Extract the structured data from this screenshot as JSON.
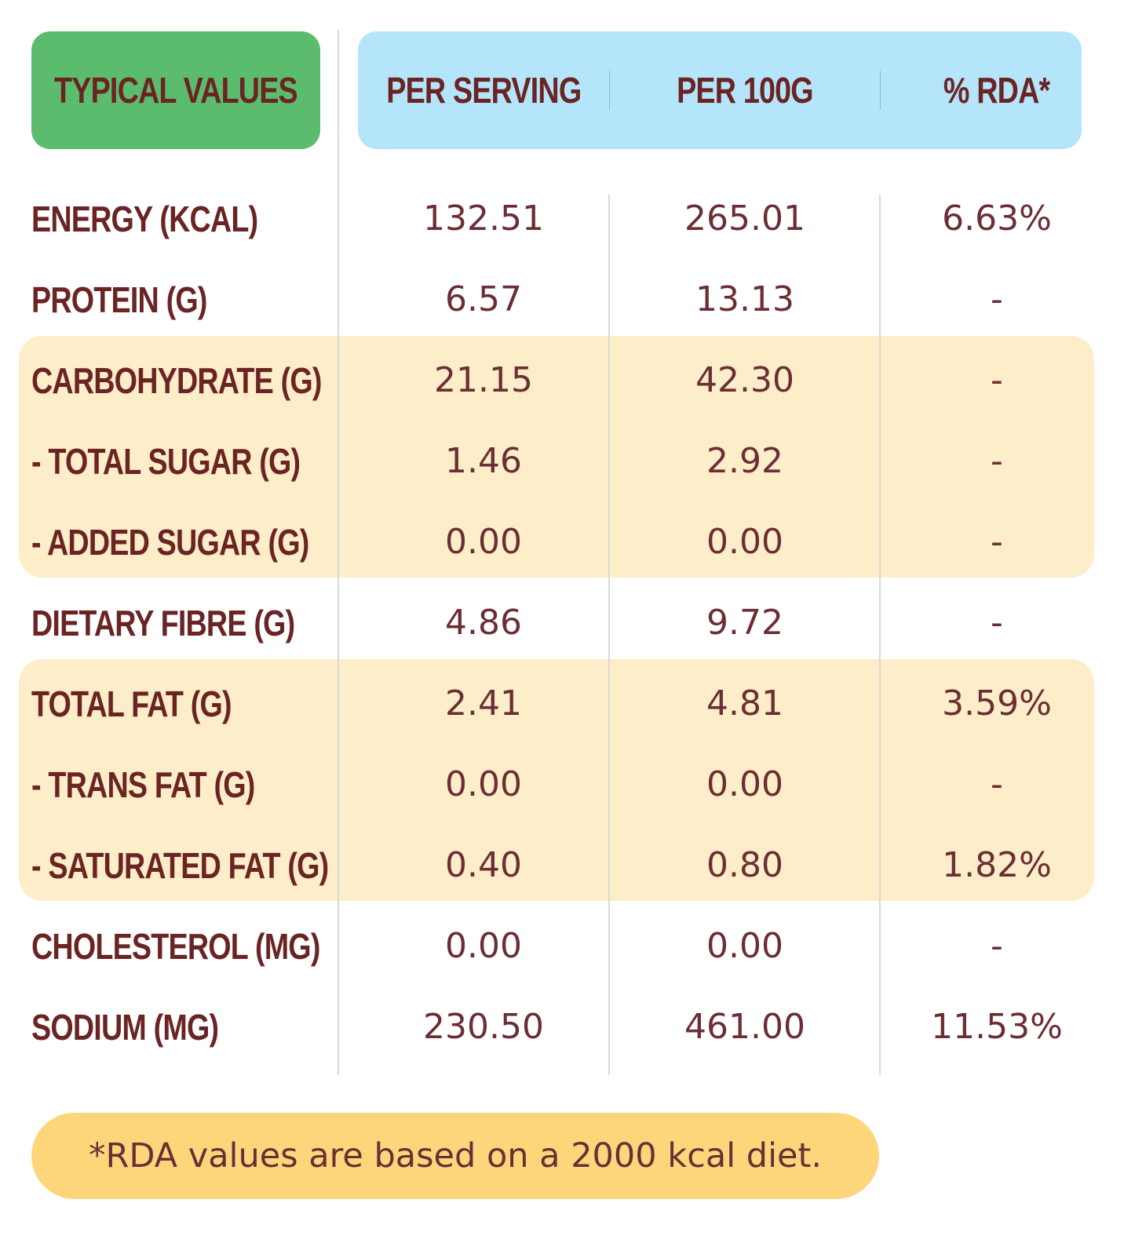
{
  "header": {
    "typical_values": "TYPICAL VALUES",
    "per_serving": "PER SERVING",
    "per_100g": "PER 100G",
    "rda": "% RDA*"
  },
  "rows": [
    {
      "label": "ENERGY (KCAL)",
      "per_serving": "132.51",
      "per_100g": "265.01",
      "rda": "6.63%"
    },
    {
      "label": "PROTEIN (G)",
      "per_serving": "6.57",
      "per_100g": "13.13",
      "rda": "-"
    },
    {
      "label": "CARBOHYDRATE (G)",
      "per_serving": "21.15",
      "per_100g": "42.30",
      "rda": "-"
    },
    {
      "label": "- TOTAL SUGAR (G)",
      "per_serving": "1.46",
      "per_100g": "2.92",
      "rda": "-"
    },
    {
      "label": "- ADDED SUGAR (G)",
      "per_serving": "0.00",
      "per_100g": "0.00",
      "rda": "-"
    },
    {
      "label": "DIETARY FIBRE (G)",
      "per_serving": "4.86",
      "per_100g": "9.72",
      "rda": "-"
    },
    {
      "label": "TOTAL FAT (G)",
      "per_serving": "2.41",
      "per_100g": "4.81",
      "rda": "3.59%"
    },
    {
      "label": "- TRANS FAT (G)",
      "per_serving": "0.00",
      "per_100g": "0.00",
      "rda": "-"
    },
    {
      "label": "- SATURATED FAT (G)",
      "per_serving": "0.40",
      "per_100g": "0.80",
      "rda": "1.82%"
    },
    {
      "label": "CHOLESTEROL (MG)",
      "per_serving": "0.00",
      "per_100g": "0.00",
      "rda": "-"
    },
    {
      "label": "SODIUM (MG)",
      "per_serving": "230.50",
      "per_100g": "461.00",
      "rda": "11.53%"
    }
  ],
  "footnote": "*RDA values are based on a 2000 kcal diet.",
  "colors": {
    "header_typical_bg": "#5cbc6e",
    "header_values_bg": "#b4e5fb",
    "highlight_band": "#fdedc9",
    "footnote_bg": "#fdd67c",
    "text": "#6b2424"
  }
}
